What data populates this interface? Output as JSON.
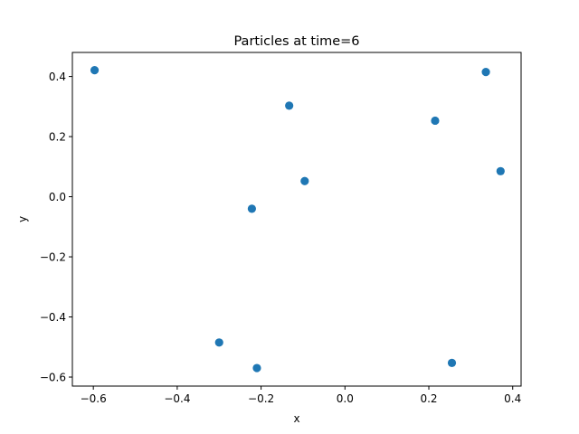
{
  "chart_data": {
    "type": "scatter",
    "title": "Particles at time=6",
    "xlabel": "x",
    "ylabel": "y",
    "xlim": [
      -0.65,
      0.42
    ],
    "ylim": [
      -0.63,
      0.48
    ],
    "xticks": [
      -0.6,
      -0.4,
      -0.2,
      0.0,
      0.2,
      0.4
    ],
    "xtick_labels": [
      "−0.6",
      "−0.4",
      "−0.2",
      "0.0",
      "0.2",
      "0.4"
    ],
    "yticks": [
      -0.6,
      -0.4,
      -0.2,
      0.0,
      0.2,
      0.4
    ],
    "ytick_labels": [
      "−0.6",
      "−0.4",
      "−0.2",
      "0.0",
      "0.2",
      "0.4"
    ],
    "grid": false,
    "color": "#1f77b4",
    "points": [
      {
        "x": -0.597,
        "y": 0.421
      },
      {
        "x": -0.133,
        "y": 0.303
      },
      {
        "x": 0.215,
        "y": 0.253
      },
      {
        "x": 0.336,
        "y": 0.415
      },
      {
        "x": 0.371,
        "y": 0.085
      },
      {
        "x": -0.096,
        "y": 0.052
      },
      {
        "x": -0.222,
        "y": -0.04
      },
      {
        "x": -0.3,
        "y": -0.485
      },
      {
        "x": -0.21,
        "y": -0.57
      },
      {
        "x": 0.255,
        "y": -0.553
      }
    ]
  }
}
